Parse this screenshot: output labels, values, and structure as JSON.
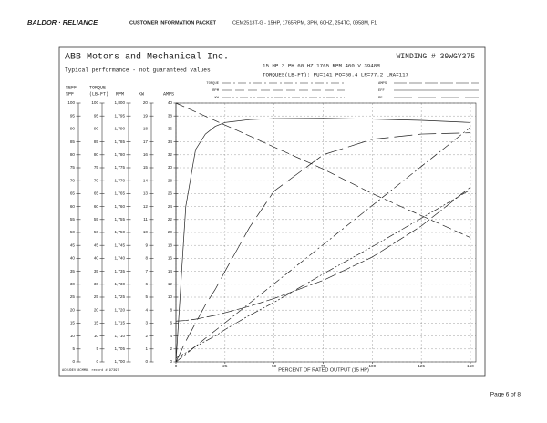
{
  "header": {
    "brand": "BALDOR · RELIANCE",
    "section": "CUSTOMER INFORMATION PACKET",
    "model": "CEM2513T-G - 15HP, 1765RPM, 3PH, 60HZ, 254TC, 0958M, F1"
  },
  "footer": {
    "page": "Page 6 of 8"
  },
  "chart_data": {
    "type": "line",
    "title": "ABB Motors and Mechanical Inc.",
    "winding": "WINDING # 39WGY375",
    "subtitle": "Typical performance - not guaranteed values.",
    "rating": "15 HP  3 PH  60 HZ  1765 RPM  460 V  3948M",
    "torques": "TORQUES(LB-FT): PU=141  PO=60.4  LR=77.2  LRA=117",
    "note": "ACCUDEV 8CMM8, record # 97397",
    "xlabel": "PERCENT OF RATED OUTPUT (15 HP)",
    "x": [
      0,
      5,
      10,
      15,
      20,
      25,
      37.5,
      50,
      75,
      100,
      125,
      150
    ],
    "xlim": [
      0,
      150
    ],
    "xticks": [
      0,
      25,
      50,
      75,
      100,
      125,
      150
    ],
    "ylabel": [
      "%EFF",
      "%PF"
    ],
    "ylim": [
      0,
      100
    ],
    "yticks": [
      0,
      5,
      10,
      15,
      20,
      25,
      30,
      35,
      40,
      45,
      50,
      55,
      60,
      65,
      70,
      75,
      80,
      85,
      90,
      95,
      100
    ],
    "y2label": [
      "TORQUE",
      "(LB-FT)"
    ],
    "y2lim": [
      0,
      100
    ],
    "y2ticks": [
      0,
      5,
      10,
      15,
      20,
      25,
      30,
      35,
      40,
      45,
      50,
      55,
      60,
      65,
      70,
      75,
      80,
      85,
      90,
      95,
      100
    ],
    "y3label": "RPM",
    "y3lim": [
      1700,
      1800
    ],
    "y3ticks": [
      {
        "value": 1700,
        "label": "1,700"
      },
      {
        "value": 1705,
        "label": "1,705"
      },
      {
        "value": 1710,
        "label": "1,710"
      },
      {
        "value": 1715,
        "label": "1,715"
      },
      {
        "value": 1720,
        "label": "1,720"
      },
      {
        "value": 1725,
        "label": "1,725"
      },
      {
        "value": 1730,
        "label": "1,730"
      },
      {
        "value": 1735,
        "label": "1,735"
      },
      {
        "value": 1740,
        "label": "1,740"
      },
      {
        "value": 1745,
        "label": "1,745"
      },
      {
        "value": 1750,
        "label": "1,750"
      },
      {
        "value": 1755,
        "label": "1,755"
      },
      {
        "value": 1760,
        "label": "1,760"
      },
      {
        "value": 1765,
        "label": "1,765"
      },
      {
        "value": 1770,
        "label": "1,770"
      },
      {
        "value": 1775,
        "label": "1,775"
      },
      {
        "value": 1780,
        "label": "1,780"
      },
      {
        "value": 1785,
        "label": "1,785"
      },
      {
        "value": 1790,
        "label": "1,790"
      },
      {
        "value": 1795,
        "label": "1,795"
      },
      {
        "value": 1800,
        "label": "1,800"
      }
    ],
    "y4label": "KW",
    "y4lim": [
      0,
      20
    ],
    "y4ticks": [
      0,
      1,
      2,
      3,
      4,
      5,
      6,
      7,
      8,
      9,
      10,
      11,
      12,
      13,
      14,
      15,
      16,
      17,
      18,
      19,
      20
    ],
    "y5label": "AMPS",
    "y5lim": [
      0,
      40
    ],
    "y5ticks": [
      0,
      2,
      4,
      6,
      8,
      10,
      12,
      14,
      16,
      18,
      20,
      22,
      24,
      26,
      28,
      30,
      32,
      34,
      36,
      38,
      40
    ],
    "grid": true,
    "series": [
      {
        "name": "TORQUE",
        "axis": "y2",
        "color": "#222",
        "dash": "9,3,2,3",
        "values": [
          0,
          3,
          6,
          9.1,
          12.1,
          15.1,
          22.7,
          30.2,
          45.3,
          60.4,
          75.5,
          90.6
        ]
      },
      {
        "name": "RPM",
        "axis": "y3",
        "color": "#222",
        "dash": "10,4",
        "values": [
          1800,
          1798.3,
          1796.6,
          1794.9,
          1793.2,
          1791.5,
          1787.3,
          1783,
          1774.5,
          1765,
          1756.5,
          1748
        ]
      },
      {
        "name": "KW",
        "axis": "y4",
        "color": "#222",
        "dash": "9,2,2,2,2,2",
        "values": [
          0.3,
          0.7,
          1.2,
          1.6,
          2,
          2.5,
          3.6,
          4.6,
          6.8,
          8.9,
          11.1,
          13.3
        ]
      },
      {
        "name": "AMPS",
        "axis": "y5",
        "color": "#222",
        "dash": "14,3",
        "values": [
          6.3,
          6.4,
          6.6,
          6.9,
          7.2,
          7.6,
          8.6,
          9.8,
          12.6,
          16.2,
          21,
          27
        ]
      },
      {
        "name": "EFF",
        "axis": "y",
        "color": "#222",
        "dash": "none",
        "values": [
          0,
          60,
          82,
          88,
          91,
          92.5,
          93.6,
          94,
          94.1,
          93.8,
          93.3,
          92.5
        ]
      },
      {
        "name": "PF",
        "axis": "y",
        "color": "#222",
        "dash": "20,6",
        "values": [
          0,
          8,
          15,
          22,
          28,
          35,
          52,
          66,
          80,
          86,
          88,
          88.5
        ]
      }
    ]
  }
}
